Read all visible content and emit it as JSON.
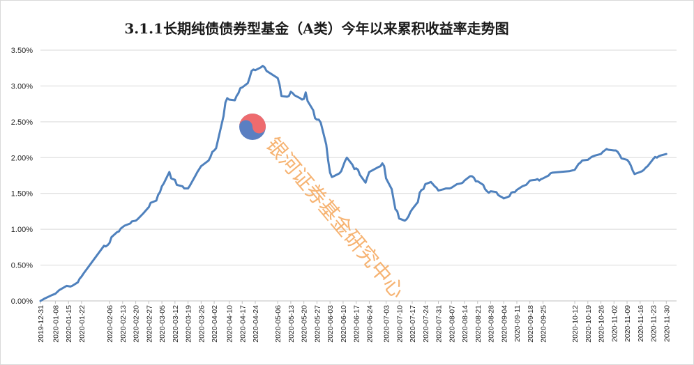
{
  "chart_data": {
    "type": "line",
    "title": "3.1.1长期纯债债券型基金（A类）今年以来累积收益率走势图",
    "xlabel": "",
    "ylabel": "",
    "ylim": [
      0,
      0.035
    ],
    "yticks": [
      "0.00%",
      "0.50%",
      "1.00%",
      "1.50%",
      "2.00%",
      "2.50%",
      "3.00%",
      "3.50%"
    ],
    "grid": "horizontal",
    "legend": "none",
    "x_range": [
      "2019-12-31",
      "2020-12-04"
    ],
    "xticks": [
      "2019-12-31",
      "2020-01-08",
      "2020-01-15",
      "2020-01-22",
      "2020-02-06",
      "2020-02-13",
      "2020-02-20",
      "2020-02-27",
      "2020-03-05",
      "2020-03-12",
      "2020-03-19",
      "2020-03-26",
      "2020-04-02",
      "2020-04-10",
      "2020-04-17",
      "2020-04-24",
      "2020-05-06",
      "2020-05-13",
      "2020-05-20",
      "2020-05-27",
      "2020-06-03",
      "2020-06-10",
      "2020-06-17",
      "2020-06-24",
      "2020-07-03",
      "2020-07-10",
      "2020-07-17",
      "2020-07-24",
      "2020-07-31",
      "2020-08-07",
      "2020-08-14",
      "2020-08-21",
      "2020-08-28",
      "2020-09-04",
      "2020-09-11",
      "2020-09-18",
      "2020-09-25",
      "2020-10-12",
      "2020-10-19",
      "2020-10-26",
      "2020-11-02",
      "2020-11-09",
      "2020-11-16",
      "2020-11-23",
      "2020-11-30"
    ],
    "series": [
      {
        "color": "#4f81bd",
        "points": [
          [
            "2019-12-31",
            0.0
          ],
          [
            "2020-01-02",
            0.0003
          ],
          [
            "2020-01-06",
            0.0008
          ],
          [
            "2020-01-08",
            0.001
          ],
          [
            "2020-01-10",
            0.0015
          ],
          [
            "2020-01-14",
            0.0021
          ],
          [
            "2020-01-16",
            0.002
          ],
          [
            "2020-01-17",
            0.0021
          ],
          [
            "2020-01-20",
            0.0026
          ],
          [
            "2020-01-21",
            0.0031
          ],
          [
            "2020-01-22",
            0.0034
          ],
          [
            "2020-01-23",
            0.0038
          ],
          [
            "2020-02-03",
            0.0077
          ],
          [
            "2020-02-04",
            0.0076
          ],
          [
            "2020-02-05",
            0.0078
          ],
          [
            "2020-02-06",
            0.0081
          ],
          [
            "2020-02-07",
            0.0089
          ],
          [
            "2020-02-10",
            0.0096
          ],
          [
            "2020-02-11",
            0.0097
          ],
          [
            "2020-02-12",
            0.0101
          ],
          [
            "2020-02-14",
            0.0105
          ],
          [
            "2020-02-17",
            0.0108
          ],
          [
            "2020-02-18",
            0.0111
          ],
          [
            "2020-02-20",
            0.0112
          ],
          [
            "2020-02-21",
            0.0114
          ],
          [
            "2020-02-24",
            0.0122
          ],
          [
            "2020-02-25",
            0.0125
          ],
          [
            "2020-02-27",
            0.0131
          ],
          [
            "2020-02-28",
            0.0137
          ],
          [
            "2020-03-02",
            0.014
          ],
          [
            "2020-03-03",
            0.0148
          ],
          [
            "2020-03-04",
            0.0152
          ],
          [
            "2020-03-05",
            0.016
          ],
          [
            "2020-03-06",
            0.0164
          ],
          [
            "2020-03-09",
            0.018
          ],
          [
            "2020-03-10",
            0.0171
          ],
          [
            "2020-03-12",
            0.0169
          ],
          [
            "2020-03-13",
            0.0162
          ],
          [
            "2020-03-16",
            0.016
          ],
          [
            "2020-03-17",
            0.0157
          ],
          [
            "2020-03-19",
            0.0157
          ],
          [
            "2020-03-20",
            0.0161
          ],
          [
            "2020-03-23",
            0.0175
          ],
          [
            "2020-03-24",
            0.018
          ],
          [
            "2020-03-26",
            0.0188
          ],
          [
            "2020-03-27",
            0.019
          ],
          [
            "2020-03-30",
            0.0196
          ],
          [
            "2020-03-31",
            0.0201
          ],
          [
            "2020-04-01",
            0.0208
          ],
          [
            "2020-04-02",
            0.021
          ],
          [
            "2020-04-03",
            0.0213
          ],
          [
            "2020-04-07",
            0.0258
          ],
          [
            "2020-04-08",
            0.0277
          ],
          [
            "2020-04-09",
            0.0283
          ],
          [
            "2020-04-10",
            0.0281
          ],
          [
            "2020-04-13",
            0.028
          ],
          [
            "2020-04-14",
            0.0286
          ],
          [
            "2020-04-15",
            0.029
          ],
          [
            "2020-04-16",
            0.0297
          ],
          [
            "2020-04-17",
            0.0298
          ],
          [
            "2020-04-20",
            0.0304
          ],
          [
            "2020-04-21",
            0.0312
          ],
          [
            "2020-04-22",
            0.0321
          ],
          [
            "2020-04-23",
            0.0323
          ],
          [
            "2020-04-24",
            0.0322
          ],
          [
            "2020-04-27",
            0.0326
          ],
          [
            "2020-04-28",
            0.0328
          ],
          [
            "2020-04-29",
            0.0326
          ],
          [
            "2020-04-30",
            0.0321
          ],
          [
            "2020-05-06",
            0.0311
          ],
          [
            "2020-05-07",
            0.0302
          ],
          [
            "2020-05-08",
            0.0286
          ],
          [
            "2020-05-11",
            0.0285
          ],
          [
            "2020-05-12",
            0.0286
          ],
          [
            "2020-05-13",
            0.0292
          ],
          [
            "2020-05-14",
            0.029
          ],
          [
            "2020-05-15",
            0.0287
          ],
          [
            "2020-05-18",
            0.0283
          ],
          [
            "2020-05-19",
            0.0281
          ],
          [
            "2020-05-20",
            0.0282
          ],
          [
            "2020-05-21",
            0.0291
          ],
          [
            "2020-05-22",
            0.0279
          ],
          [
            "2020-05-25",
            0.0266
          ],
          [
            "2020-05-26",
            0.0255
          ],
          [
            "2020-05-27",
            0.0253
          ],
          [
            "2020-05-28",
            0.0253
          ],
          [
            "2020-05-29",
            0.0249
          ],
          [
            "2020-06-01",
            0.0218
          ],
          [
            "2020-06-02",
            0.0196
          ],
          [
            "2020-06-03",
            0.0179
          ],
          [
            "2020-06-04",
            0.0173
          ],
          [
            "2020-06-05",
            0.0174
          ],
          [
            "2020-06-08",
            0.0178
          ],
          [
            "2020-06-09",
            0.0181
          ],
          [
            "2020-06-10",
            0.0188
          ],
          [
            "2020-06-11",
            0.0195
          ],
          [
            "2020-06-12",
            0.02
          ],
          [
            "2020-06-15",
            0.019
          ],
          [
            "2020-06-16",
            0.0184
          ],
          [
            "2020-06-17",
            0.0185
          ],
          [
            "2020-06-18",
            0.0183
          ],
          [
            "2020-06-19",
            0.0176
          ],
          [
            "2020-06-22",
            0.0165
          ],
          [
            "2020-06-23",
            0.0173
          ],
          [
            "2020-06-24",
            0.018
          ],
          [
            "2020-06-29",
            0.0187
          ],
          [
            "2020-06-30",
            0.0188
          ],
          [
            "2020-07-01",
            0.0192
          ],
          [
            "2020-07-02",
            0.0188
          ],
          [
            "2020-07-03",
            0.0171
          ],
          [
            "2020-07-06",
            0.0156
          ],
          [
            "2020-07-07",
            0.0142
          ],
          [
            "2020-07-08",
            0.0128
          ],
          [
            "2020-07-09",
            0.0125
          ],
          [
            "2020-07-10",
            0.0115
          ],
          [
            "2020-07-13",
            0.0112
          ],
          [
            "2020-07-14",
            0.0114
          ],
          [
            "2020-07-15",
            0.0118
          ],
          [
            "2020-07-16",
            0.0124
          ],
          [
            "2020-07-17",
            0.0128
          ],
          [
            "2020-07-20",
            0.0138
          ],
          [
            "2020-07-21",
            0.0151
          ],
          [
            "2020-07-22",
            0.0155
          ],
          [
            "2020-07-23",
            0.0156
          ],
          [
            "2020-07-24",
            0.0163
          ],
          [
            "2020-07-27",
            0.0166
          ],
          [
            "2020-07-28",
            0.0163
          ],
          [
            "2020-07-29",
            0.016
          ],
          [
            "2020-07-30",
            0.0158
          ],
          [
            "2020-07-31",
            0.0154
          ],
          [
            "2020-08-03",
            0.0156
          ],
          [
            "2020-08-04",
            0.0157
          ],
          [
            "2020-08-06",
            0.0157
          ],
          [
            "2020-08-07",
            0.0158
          ],
          [
            "2020-08-10",
            0.0163
          ],
          [
            "2020-08-12",
            0.0164
          ],
          [
            "2020-08-13",
            0.0165
          ],
          [
            "2020-08-14",
            0.0168
          ],
          [
            "2020-08-17",
            0.0174
          ],
          [
            "2020-08-18",
            0.0174
          ],
          [
            "2020-08-19",
            0.0172
          ],
          [
            "2020-08-20",
            0.0167
          ],
          [
            "2020-08-21",
            0.0167
          ],
          [
            "2020-08-24",
            0.0162
          ],
          [
            "2020-08-25",
            0.0156
          ],
          [
            "2020-08-26",
            0.0153
          ],
          [
            "2020-08-27",
            0.0151
          ],
          [
            "2020-08-28",
            0.0153
          ],
          [
            "2020-08-31",
            0.0152
          ],
          [
            "2020-09-01",
            0.0148
          ],
          [
            "2020-09-02",
            0.0146
          ],
          [
            "2020-09-03",
            0.0145
          ],
          [
            "2020-09-04",
            0.0143
          ],
          [
            "2020-09-07",
            0.0146
          ],
          [
            "2020-09-08",
            0.0151
          ],
          [
            "2020-09-09",
            0.0152
          ],
          [
            "2020-09-10",
            0.0152
          ],
          [
            "2020-09-11",
            0.0155
          ],
          [
            "2020-09-14",
            0.016
          ],
          [
            "2020-09-15",
            0.0161
          ],
          [
            "2020-09-16",
            0.0162
          ],
          [
            "2020-09-17",
            0.0165
          ],
          [
            "2020-09-18",
            0.0168
          ],
          [
            "2020-09-21",
            0.0169
          ],
          [
            "2020-09-22",
            0.017
          ],
          [
            "2020-09-23",
            0.0168
          ],
          [
            "2020-09-24",
            0.017
          ],
          [
            "2020-09-25",
            0.0171
          ],
          [
            "2020-09-28",
            0.0175
          ],
          [
            "2020-09-29",
            0.0178
          ],
          [
            "2020-09-30",
            0.0179
          ],
          [
            "2020-10-09",
            0.0181
          ],
          [
            "2020-10-12",
            0.0183
          ],
          [
            "2020-10-13",
            0.0187
          ],
          [
            "2020-10-14",
            0.0191
          ],
          [
            "2020-10-15",
            0.0193
          ],
          [
            "2020-10-16",
            0.0196
          ],
          [
            "2020-10-19",
            0.0197
          ],
          [
            "2020-10-20",
            0.0199
          ],
          [
            "2020-10-21",
            0.0201
          ],
          [
            "2020-10-22",
            0.0202
          ],
          [
            "2020-10-23",
            0.0203
          ],
          [
            "2020-10-26",
            0.0205
          ],
          [
            "2020-10-27",
            0.0208
          ],
          [
            "2020-10-28",
            0.021
          ],
          [
            "2020-10-29",
            0.0212
          ],
          [
            "2020-10-30",
            0.0211
          ],
          [
            "2020-11-02",
            0.021
          ],
          [
            "2020-11-03",
            0.021
          ],
          [
            "2020-11-04",
            0.0208
          ],
          [
            "2020-11-05",
            0.0204
          ],
          [
            "2020-11-06",
            0.0199
          ],
          [
            "2020-11-09",
            0.0197
          ],
          [
            "2020-11-10",
            0.0194
          ],
          [
            "2020-11-11",
            0.0189
          ],
          [
            "2020-11-12",
            0.0182
          ],
          [
            "2020-11-13",
            0.0177
          ],
          [
            "2020-11-16",
            0.018
          ],
          [
            "2020-11-17",
            0.0181
          ],
          [
            "2020-11-18",
            0.0183
          ],
          [
            "2020-11-19",
            0.0186
          ],
          [
            "2020-11-20",
            0.0188
          ],
          [
            "2020-11-23",
            0.0198
          ],
          [
            "2020-11-24",
            0.0201
          ],
          [
            "2020-11-25",
            0.02
          ],
          [
            "2020-11-26",
            0.0202
          ],
          [
            "2020-11-27",
            0.0203
          ],
          [
            "2020-11-30",
            0.0205
          ]
        ]
      }
    ]
  },
  "watermark": {
    "text": "银河证券基金研究中心",
    "logo_colors": [
      "#ee6b6e",
      "#5a7fc2"
    ],
    "text_color": "#f5a65a"
  }
}
